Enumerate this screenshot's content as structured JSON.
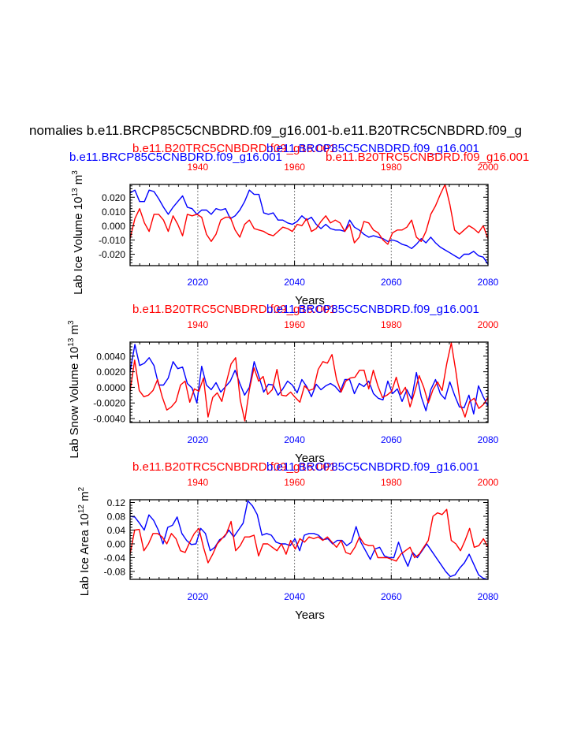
{
  "page_title": "nomalies b.e11.BRCP85C5CNBDRD.f09_g16.001-b.e11.B20TRC5CNBDRD.f09_g",
  "colors": {
    "rcp": "#0000ff",
    "hist": "#ff0000",
    "grid": "#808080",
    "axis": "#000000"
  },
  "chart_data": [
    {
      "type": "line",
      "top_left_title": "b.e11.BRCP85C5CNBDRD.f09_g16.001",
      "top_mid_title": "b.e11.B20TRC5CNBDRD.f09_g16.001",
      "top_mid_title2": "b.e11.BRCP85C5CNBDRD.f09_g16.001",
      "top_right_title": "b.e11.B20TRC5CNBDRD.f09_g16.001",
      "ylabel": "Lab Ice Volume 10",
      "ylabel_exp": "13",
      "ylabel_unit": "m",
      "ylabel_unit_exp": "3",
      "xlabel": "Years",
      "xlim": [
        2006,
        2080
      ],
      "ylim": [
        -0.028,
        0.029
      ],
      "yticks": [
        -0.02,
        -0.01,
        0.0,
        0.01,
        0.02
      ],
      "ytick_labels": [
        "-0.020",
        "-0.010",
        "0.000",
        "0.010",
        "0.020"
      ],
      "xticks_bottom": [
        2020,
        2040,
        2060,
        2080
      ],
      "xtick_labels_bottom": [
        "2020",
        "2040",
        "2060",
        "2080"
      ],
      "xticks_top_years": [
        1940,
        1960,
        1980,
        2000
      ],
      "xtick_labels_top": [
        "1940",
        "1960",
        "1980",
        "2000"
      ],
      "gridlines_at": [
        2020,
        2040,
        2060
      ],
      "series": [
        {
          "name": "b.e11.BRCP85C5CNBDRD.f09_g16.001",
          "color": "#0000ff",
          "values": [
            0.023,
            0.025,
            0.017,
            0.017,
            0.025,
            0.024,
            0.019,
            0.013,
            0.008,
            0.013,
            0.017,
            0.021,
            0.013,
            0.012,
            0.008,
            0.011,
            0.011,
            0.008,
            0.012,
            0.011,
            0.012,
            0.005,
            0.007,
            0.011,
            0.017,
            0.025,
            0.022,
            0.022,
            0.009,
            0.008,
            0.009,
            0.004,
            0.004,
            0.002,
            0.001,
            0.003,
            0.007,
            0.004,
            0.006,
            0.001,
            -0.002,
            0.001,
            -0.002,
            -0.003,
            -0.003,
            -0.004,
            0.004,
            -0.001,
            -0.003,
            -0.006,
            -0.008,
            -0.007,
            -0.008,
            -0.009,
            -0.011,
            -0.01,
            -0.011,
            -0.013,
            -0.014,
            -0.016,
            -0.013,
            -0.009,
            -0.012,
            -0.008,
            -0.012,
            -0.015,
            -0.017,
            -0.019,
            -0.021,
            -0.023,
            -0.02,
            -0.02,
            -0.018,
            -0.021,
            -0.022,
            -0.027
          ]
        },
        {
          "name": "b.e11.B20TRC5CNBDRD.f09_g16.001",
          "color": "#ff0000",
          "values": [
            -0.009,
            0.005,
            0.012,
            0.002,
            -0.004,
            0.008,
            0.008,
            0.004,
            -0.004,
            0.007,
            0.001,
            -0.007,
            0.008,
            0.007,
            0.008,
            0.006,
            -0.006,
            -0.011,
            -0.006,
            0.004,
            0.006,
            0.006,
            -0.003,
            -0.008,
            0.001,
            0.004,
            -0.002,
            -0.003,
            -0.004,
            -0.006,
            -0.007,
            -0.004,
            -0.001,
            -0.002,
            -0.004,
            0.001,
            0.0,
            0.005,
            -0.004,
            -0.002,
            0.003,
            0.007,
            0.002,
            0.004,
            0.002,
            -0.004,
            0.001,
            -0.012,
            -0.008,
            0.003,
            0.002,
            -0.003,
            -0.005,
            -0.01,
            -0.013,
            -0.005,
            -0.003,
            -0.003,
            -0.001,
            0.004,
            -0.008,
            -0.011,
            -0.004,
            0.008,
            0.014,
            0.022,
            0.029,
            0.015,
            -0.003,
            -0.006,
            -0.003,
            0.0,
            -0.002,
            -0.005,
            0.0,
            -0.009
          ]
        }
      ]
    },
    {
      "type": "line",
      "top_left_title": "b.e11.B20TRC5CNBDRD.f09_g16.001",
      "top_mid_title": "b.e11.BRCP85C5CNBDRD.f09_g16.001",
      "ylabel": "Lab Snow Volume 10",
      "ylabel_exp": "13",
      "ylabel_unit": "m",
      "ylabel_unit_exp": "3",
      "xlabel": "Years",
      "xlim": [
        2006,
        2080
      ],
      "ylim": [
        -0.0045,
        0.0058
      ],
      "yticks": [
        -0.004,
        -0.002,
        0.0,
        0.002,
        0.004
      ],
      "ytick_labels": [
        "-0.0040",
        "-0.0020",
        "0.0000",
        "0.0020",
        "0.0040"
      ],
      "xticks_bottom": [
        2020,
        2040,
        2060,
        2080
      ],
      "xtick_labels_bottom": [
        "2020",
        "2040",
        "2060",
        "2080"
      ],
      "xticks_top_years": [
        1940,
        1960,
        1980,
        2000
      ],
      "xtick_labels_top": [
        "1940",
        "1960",
        "1980",
        "2000"
      ],
      "gridlines_at": [
        2020,
        2040,
        2060
      ],
      "series": [
        {
          "name": "b.e11.BRCP85C5CNBDRD.f09_g16.001",
          "color": "#0000ff",
          "values": [
            0.002,
            0.0055,
            0.0028,
            0.0031,
            0.0038,
            0.0028,
            0.0003,
            0.0003,
            0.0012,
            0.0033,
            0.0024,
            0.0026,
            0.0005,
            -0.0001,
            -0.002,
            0.0027,
            0.0003,
            -0.0003,
            0.0006,
            -0.0006,
            0.0001,
            0.0008,
            0.0022,
            0.0005,
            -0.001,
            0.0,
            0.0033,
            0.0014,
            -0.0006,
            0.0004,
            0.0003,
            -0.001,
            -0.0002,
            0.0008,
            0.0003,
            -0.0007,
            0.001,
            0.0001,
            -0.0012,
            0.0004,
            -0.0003,
            0.0002,
            0.0005,
            0.0001,
            -0.0006,
            0.001,
            0.001,
            -0.0008,
            0.0005,
            0.0001,
            0.0008,
            -0.0008,
            -0.0014,
            -0.0016,
            0.0008,
            -0.0008,
            -0.0002,
            -0.0018,
            -0.0003,
            -0.0015,
            0.0019,
            -0.0012,
            -0.003,
            -0.0003,
            0.001,
            -0.0008,
            -0.0015,
            0.0007,
            -0.001,
            -0.0025,
            -0.0026,
            -0.001,
            -0.0034,
            0.0002,
            -0.0012,
            -0.0024
          ]
        },
        {
          "name": "b.e11.B20TRC5CNBDRD.f09_g16.001",
          "color": "#ff0000",
          "values": [
            -0.0005,
            0.0035,
            -0.0004,
            -0.0012,
            -0.001,
            -0.0004,
            0.001,
            -0.0012,
            -0.0029,
            -0.0025,
            -0.0018,
            0.0003,
            0.0008,
            -0.0019,
            -0.0002,
            -0.0005,
            0.0012,
            -0.0038,
            -0.0013,
            -0.0007,
            -0.0018,
            0.0007,
            0.003,
            0.0038,
            -0.0016,
            -0.0043,
            -0.0003,
            0.0025,
            0.0008,
            0.0014,
            -0.0009,
            -0.0003,
            0.0023,
            -0.001,
            -0.0011,
            -0.0006,
            -0.0013,
            -0.0019,
            0.0002,
            -0.0004,
            -0.0002,
            0.0023,
            0.0033,
            0.0031,
            0.0042,
            0.001,
            -0.0006,
            0.0008,
            0.0012,
            0.0013,
            0.0022,
            0.0022,
            -0.0002,
            0.0022,
            0.0002,
            -0.0013,
            -0.001,
            -0.0005,
            0.0013,
            -0.0009,
            0.0,
            -0.0025,
            -0.0006,
            0.0015,
            0.0,
            -0.002,
            -0.0003,
            0.0007,
            -0.0004,
            0.003,
            0.0057,
            0.002,
            -0.0022,
            -0.0038,
            -0.0018,
            -0.0014,
            -0.0027,
            -0.0022,
            -0.0013
          ]
        }
      ]
    },
    {
      "type": "line",
      "top_left_title": "b.e11.B20TRC5CNBDRD.f09_g16.001",
      "top_mid_title": "b.e11.BRCP85C5CNBDRD.f09_g16.001",
      "ylabel": "Lab Ice Area 10",
      "ylabel_exp": "12",
      "ylabel_unit": "m",
      "ylabel_unit_exp": "2",
      "xlabel": "Years",
      "xlim": [
        2006,
        2080
      ],
      "ylim": [
        -0.103,
        0.128
      ],
      "yticks": [
        -0.08,
        -0.04,
        0.0,
        0.04,
        0.08,
        0.12
      ],
      "ytick_labels": [
        "-0.08",
        "-0.04",
        "0.00",
        "0.04",
        "0.08",
        "0.12"
      ],
      "xticks_bottom": [
        2020,
        2040,
        2060,
        2080
      ],
      "xtick_labels_bottom": [
        "2020",
        "2040",
        "2060",
        "2080"
      ],
      "xticks_top_years": [
        1940,
        1960,
        1980,
        2000
      ],
      "xtick_labels_top": [
        "1940",
        "1960",
        "1980",
        "2000"
      ],
      "gridlines_at": [
        2020,
        2040,
        2060
      ],
      "series": [
        {
          "name": "b.e11.BRCP85C5CNBDRD.f09_g16.001",
          "color": "#0000ff",
          "values": [
            0.08,
            0.078,
            0.06,
            0.04,
            0.084,
            0.068,
            0.04,
            0.0,
            0.048,
            0.054,
            0.078,
            0.03,
            0.01,
            -0.002,
            0.0,
            0.045,
            0.03,
            -0.02,
            -0.01,
            0.012,
            0.02,
            0.04,
            0.02,
            0.04,
            0.06,
            0.125,
            0.11,
            0.085,
            0.025,
            0.03,
            0.025,
            0.005,
            0.0,
            0.0,
            -0.005,
            0.015,
            -0.02,
            0.025,
            0.03,
            0.03,
            0.025,
            0.012,
            0.015,
            0.0,
            0.01,
            0.01,
            -0.005,
            0.005,
            0.05,
            0.005,
            -0.02,
            -0.045,
            -0.015,
            -0.01,
            -0.035,
            -0.04,
            -0.04,
            0.005,
            -0.035,
            -0.065,
            -0.025,
            -0.04,
            -0.02,
            0.0,
            -0.02,
            -0.04,
            -0.06,
            -0.08,
            -0.095,
            -0.09,
            -0.07,
            -0.055,
            -0.03,
            -0.06,
            -0.09,
            -0.1,
            -0.103
          ]
        },
        {
          "name": "b.e11.B20TRC5CNBDRD.f09_g16.001",
          "color": "#ff0000",
          "values": [
            -0.03,
            0.04,
            0.042,
            -0.02,
            0.0,
            0.03,
            0.03,
            0.02,
            0.0,
            0.03,
            0.015,
            -0.02,
            -0.025,
            0.005,
            0.03,
            0.045,
            -0.01,
            -0.055,
            -0.03,
            0.0,
            0.015,
            0.03,
            0.065,
            -0.02,
            -0.005,
            0.02,
            0.02,
            0.025,
            -0.035,
            0.0,
            0.0,
            -0.01,
            -0.02,
            0.0,
            -0.03,
            0.01,
            -0.015,
            0.015,
            0.005,
            0.02,
            0.015,
            0.02,
            0.01,
            0.02,
            0.005,
            -0.01,
            0.01,
            -0.025,
            -0.03,
            -0.01,
            0.02,
            0.0,
            -0.005,
            -0.005,
            -0.04,
            -0.04,
            -0.04,
            -0.045,
            -0.05,
            -0.03,
            -0.02,
            -0.01,
            -0.04,
            -0.03,
            -0.01,
            0.01,
            0.08,
            0.09,
            0.085,
            0.1,
            0.01,
            0.0,
            -0.02,
            0.01,
            0.045,
            -0.01,
            -0.005,
            0.015,
            -0.01
          ]
        }
      ]
    }
  ]
}
